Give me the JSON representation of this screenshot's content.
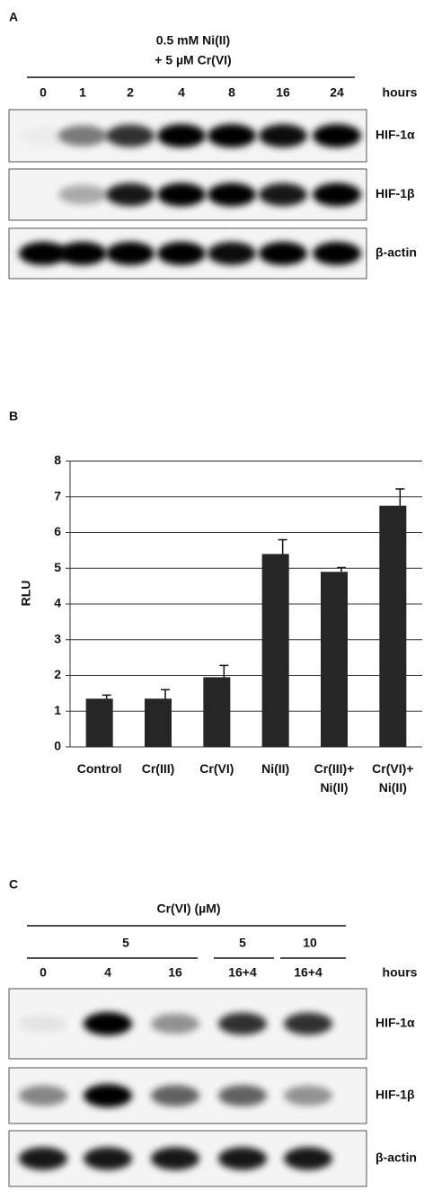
{
  "panel_a": {
    "label": "A",
    "treatment": [
      "0.5 mM Ni(II)",
      "+ 5 µM Cr(VI)"
    ],
    "lanes": [
      "0",
      "1",
      "2",
      "4",
      "8",
      "16",
      "24"
    ],
    "unit": "hours",
    "blots": [
      "HIF-1α",
      "HIF-1β",
      "β-actin"
    ]
  },
  "chart_data": {
    "type": "bar",
    "panel": "B",
    "ylabel": "RLU",
    "categories": [
      "Control",
      "Cr(III)",
      "Cr(VI)",
      "Ni(II)",
      "Cr(III)+\nNi(II)",
      "Cr(VI)+\nNi(II)"
    ],
    "values": [
      1.35,
      1.35,
      1.95,
      5.4,
      4.9,
      6.75
    ],
    "errors": [
      0.1,
      0.25,
      0.33,
      0.4,
      0.12,
      0.47
    ],
    "color": "#262626",
    "ylim": [
      0,
      8
    ],
    "yticks": [
      0,
      1,
      2,
      3,
      4,
      5,
      6,
      7,
      8
    ],
    "grid": true
  },
  "panel_c": {
    "label": "C",
    "treatment": "Cr(VI) (µM)",
    "doses": [
      "5",
      "5",
      "10"
    ],
    "lanes": [
      "0",
      "4",
      "16",
      "16+4",
      "16+4"
    ],
    "unit": "hours",
    "blots": [
      "HIF-1α",
      "HIF-1β",
      "β-actin"
    ]
  }
}
